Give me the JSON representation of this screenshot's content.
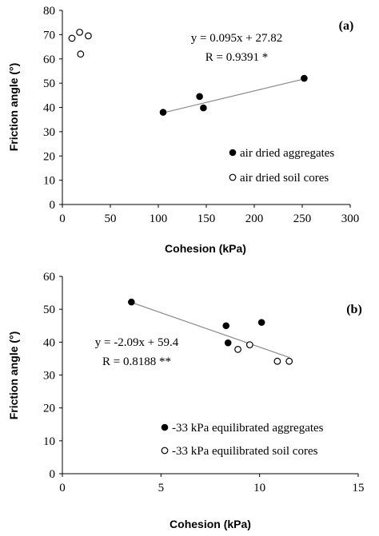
{
  "chart_data": [
    {
      "panel_label": "(a)",
      "type": "scatter",
      "xlabel": "Cohesion (kPa)",
      "ylabel": "Friction angle (°)",
      "xlim": [
        0,
        300
      ],
      "ylim": [
        0,
        80
      ],
      "xticks": [
        0,
        50,
        100,
        150,
        200,
        250,
        300
      ],
      "yticks": [
        0,
        10,
        20,
        30,
        40,
        50,
        60,
        70,
        80
      ],
      "xtick_labels": [
        "0",
        "50",
        "100",
        "150",
        "200",
        "250",
        "300"
      ],
      "ytick_labels": [
        "0",
        "10",
        "20",
        "30",
        "40",
        "50",
        "60",
        "70",
        "80"
      ],
      "grid": false,
      "legend_position": "bottom-right",
      "series": [
        {
          "name": "air dried aggregates",
          "marker": "filled-circle",
          "points": [
            [
              105,
              38
            ],
            [
              143,
              44.5
            ],
            [
              147,
              39.8
            ],
            [
              252,
              52
            ]
          ]
        },
        {
          "name": "air dried soil cores",
          "marker": "open-circle",
          "points": [
            [
              10,
              68.5
            ],
            [
              18,
              71
            ],
            [
              27,
              69.5
            ],
            [
              19,
              62
            ]
          ]
        }
      ],
      "trendline": {
        "x_range": [
          105,
          252
        ],
        "slope": 0.095,
        "intercept": 27.82
      },
      "annotation": [
        "y = 0.095x + 27.82",
        "R = 0.9391 *"
      ]
    },
    {
      "panel_label": "(b)",
      "type": "scatter",
      "xlabel": "Cohesion (kPa)",
      "ylabel": "Friction angle (°)",
      "xlim": [
        0,
        15
      ],
      "ylim": [
        0,
        60
      ],
      "xticks": [
        0,
        5,
        10,
        15
      ],
      "yticks": [
        0,
        10,
        20,
        30,
        40,
        50,
        60
      ],
      "xtick_labels": [
        "0",
        "5",
        "10",
        "15"
      ],
      "ytick_labels": [
        "0",
        "10",
        "20",
        "30",
        "40",
        "50",
        "60"
      ],
      "grid": false,
      "legend_position": "bottom-right",
      "series": [
        {
          "name": "-33 kPa equilibrated aggregates",
          "marker": "filled-circle",
          "points": [
            [
              3.5,
              52.2
            ],
            [
              8.3,
              45
            ],
            [
              8.4,
              39.8
            ],
            [
              10.1,
              46
            ]
          ]
        },
        {
          "name": "-33 kPa equilibrated soil cores",
          "marker": "open-circle",
          "points": [
            [
              8.9,
              37.8
            ],
            [
              9.5,
              39.2
            ],
            [
              10.9,
              34.2
            ],
            [
              11.5,
              34.2
            ]
          ]
        }
      ],
      "trendline": {
        "x_range": [
          3.5,
          11.5
        ],
        "slope": -2.09,
        "intercept": 59.4
      },
      "annotation": [
        "y = -2.09x + 59.4",
        "R = 0.8188 **"
      ]
    }
  ]
}
